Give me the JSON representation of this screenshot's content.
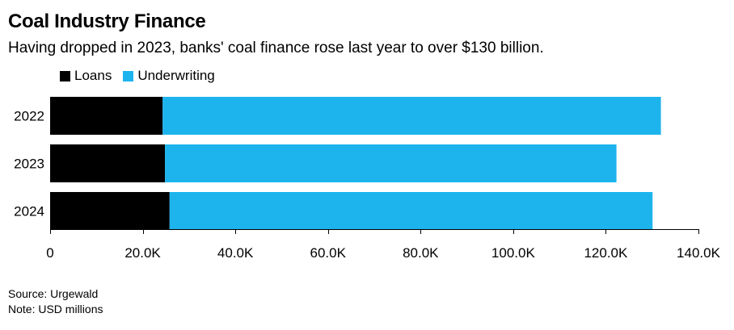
{
  "chart_data": {
    "type": "bar",
    "orientation": "horizontal",
    "stacked": true,
    "title": "Coal Industry Finance",
    "subtitle": "Having dropped in 2023, banks' coal finance rose last year to over $130 billion.",
    "categories": [
      "2022",
      "2023",
      "2024"
    ],
    "series": [
      {
        "name": "Loans",
        "color": "#000000",
        "values": [
          24300,
          24800,
          25800
        ]
      },
      {
        "name": "Underwriting",
        "color": "#1db4ee",
        "values": [
          107600,
          97500,
          104300
        ]
      }
    ],
    "xlim": [
      0,
      140000
    ],
    "xticks": [
      0,
      20000,
      40000,
      60000,
      80000,
      100000,
      120000,
      140000
    ],
    "xtick_labels": [
      "0",
      "20.0K",
      "40.0K",
      "60.0K",
      "80.0K",
      "100.0K",
      "120.0K",
      "140.0K"
    ],
    "legend_position": "top-left",
    "xlabel": "",
    "ylabel": ""
  },
  "footer": {
    "source": "Source: Urgewald",
    "note": "Note: USD millions"
  }
}
